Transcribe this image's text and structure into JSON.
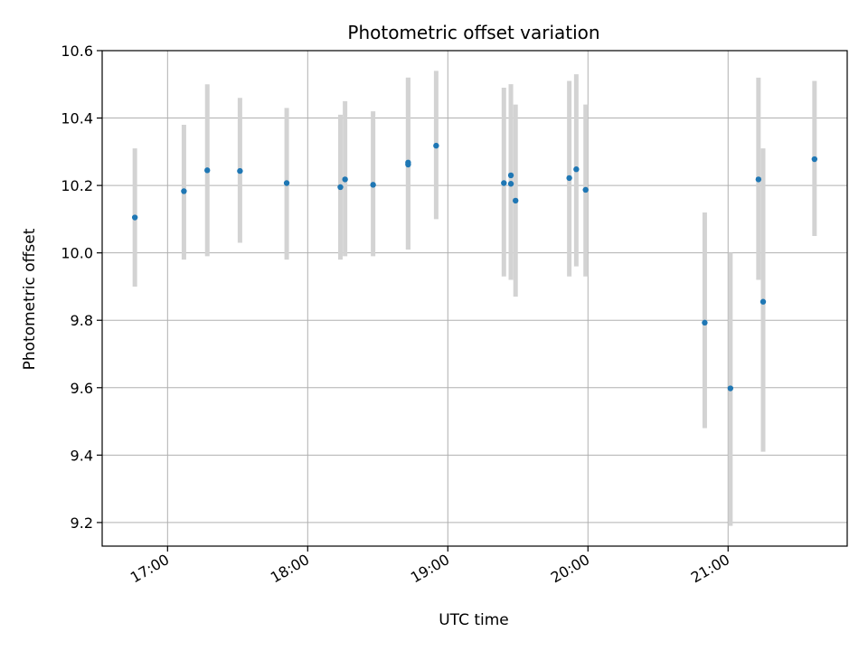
{
  "chart_data": {
    "type": "scatter",
    "title": "Photometric offset variation",
    "xlabel": "UTC time",
    "ylabel": "Photometric offset",
    "x_axis": {
      "kind": "time",
      "min": "16:32",
      "max": "21:51",
      "ticks": [
        "17:00",
        "18:00",
        "19:00",
        "20:00",
        "21:00"
      ]
    },
    "y_axis": {
      "min": 9.13,
      "max": 10.6,
      "ticks": [
        "9.2",
        "9.4",
        "9.6",
        "9.8",
        "10.0",
        "10.2",
        "10.4",
        "10.6"
      ]
    },
    "grid": true,
    "colors": {
      "point": "#1f77b4",
      "errorbar": "#d3d3d3",
      "grid": "#b0b0b0"
    },
    "points": [
      {
        "x": "16:46",
        "y": 10.105,
        "lo": 9.9,
        "hi": 10.31
      },
      {
        "x": "17:07",
        "y": 10.183,
        "lo": 9.98,
        "hi": 10.38
      },
      {
        "x": "17:17",
        "y": 10.245,
        "lo": 9.99,
        "hi": 10.5
      },
      {
        "x": "17:31",
        "y": 10.243,
        "lo": 10.03,
        "hi": 10.46
      },
      {
        "x": "17:51",
        "y": 10.207,
        "lo": 9.98,
        "hi": 10.43
      },
      {
        "x": "18:14",
        "y": 10.195,
        "lo": 9.98,
        "hi": 10.41
      },
      {
        "x": "18:16",
        "y": 10.218,
        "lo": 9.99,
        "hi": 10.45
      },
      {
        "x": "18:28",
        "y": 10.202,
        "lo": 9.99,
        "hi": 10.42
      },
      {
        "x": "18:43",
        "y": 10.268,
        "lo": 10.01,
        "hi": 10.52
      },
      {
        "x": "18:43",
        "y": 10.262,
        "lo": 10.01,
        "hi": 10.52
      },
      {
        "x": "18:55",
        "y": 10.318,
        "lo": 10.1,
        "hi": 10.54
      },
      {
        "x": "19:24",
        "y": 10.207,
        "lo": 9.93,
        "hi": 10.49
      },
      {
        "x": "19:27",
        "y": 10.23,
        "lo": 9.92,
        "hi": 10.5
      },
      {
        "x": "19:27",
        "y": 10.205,
        "lo": 9.92,
        "hi": 10.5
      },
      {
        "x": "19:29",
        "y": 10.155,
        "lo": 9.87,
        "hi": 10.44
      },
      {
        "x": "19:52",
        "y": 10.222,
        "lo": 9.93,
        "hi": 10.51
      },
      {
        "x": "19:55",
        "y": 10.248,
        "lo": 9.96,
        "hi": 10.53
      },
      {
        "x": "19:59",
        "y": 10.187,
        "lo": 9.93,
        "hi": 10.44
      },
      {
        "x": "20:50",
        "y": 9.793,
        "lo": 9.48,
        "hi": 10.12
      },
      {
        "x": "21:01",
        "y": 9.598,
        "lo": 9.19,
        "hi": 10.0
      },
      {
        "x": "21:13",
        "y": 10.218,
        "lo": 9.92,
        "hi": 10.52
      },
      {
        "x": "21:15",
        "y": 9.855,
        "lo": 9.41,
        "hi": 10.31
      },
      {
        "x": "21:37",
        "y": 10.278,
        "lo": 10.05,
        "hi": 10.51
      }
    ]
  }
}
